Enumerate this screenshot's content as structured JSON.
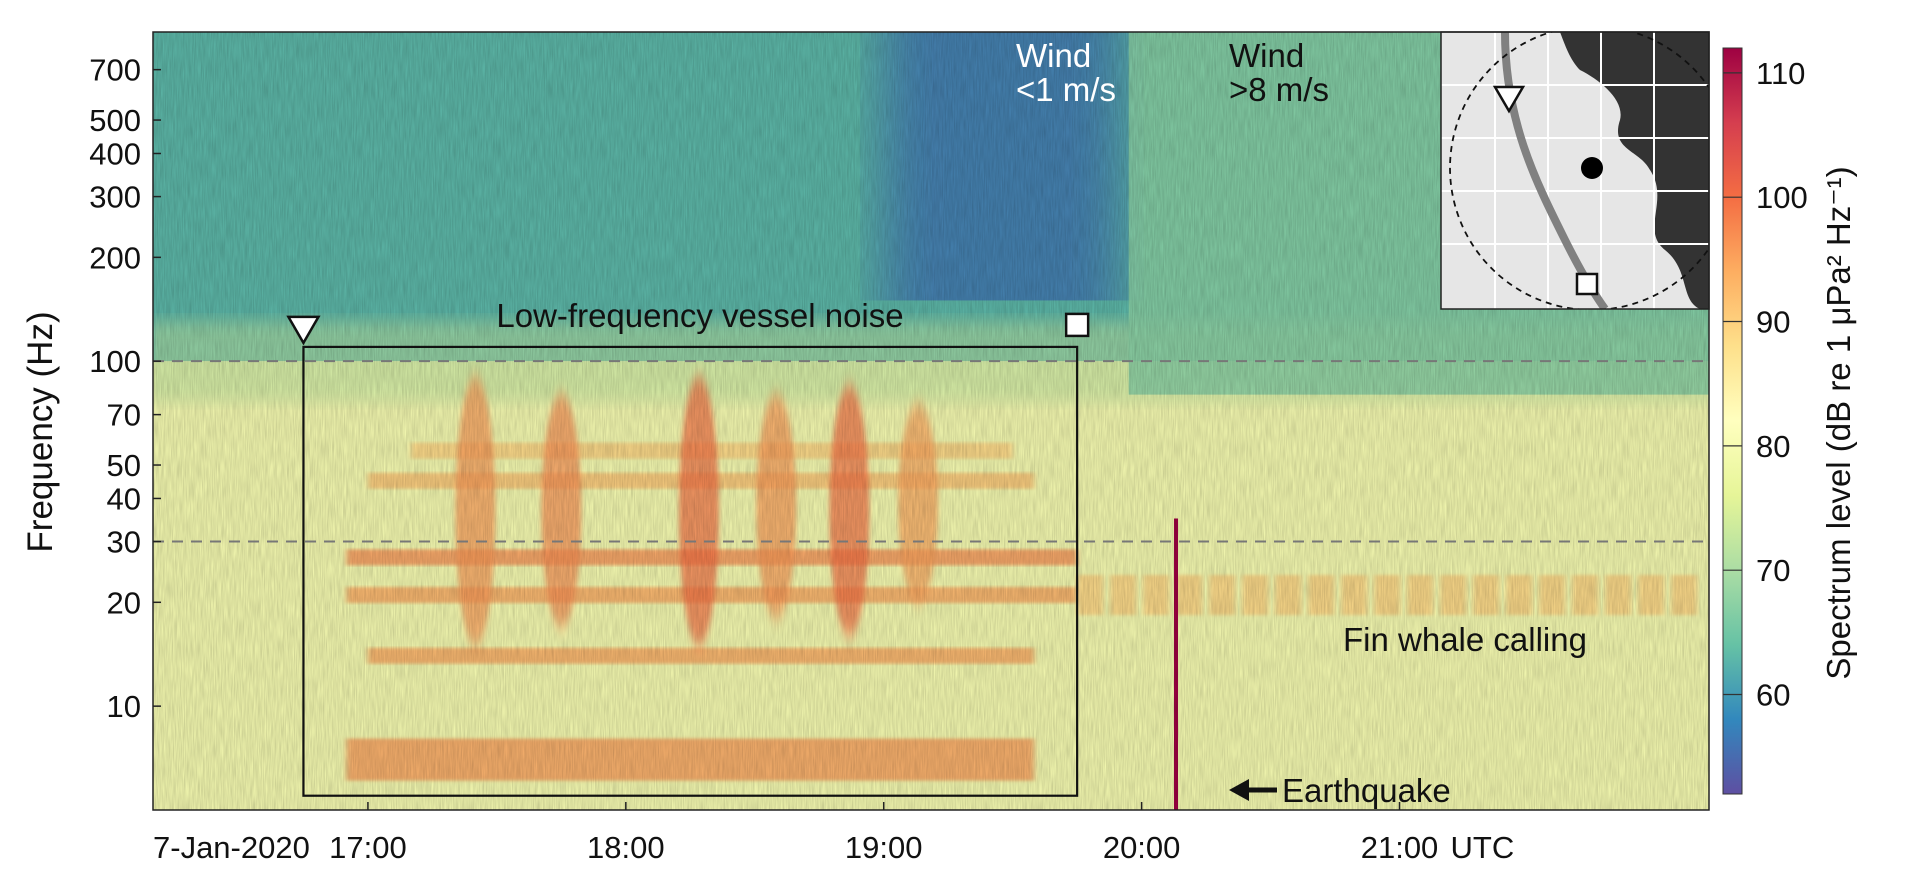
{
  "chart_data": {
    "type": "heatmap",
    "title": "",
    "xlabel": "",
    "ylabel": "Frequency (Hz)",
    "y_scale": "log",
    "ylim": [
      5,
      900
    ],
    "xlim": [
      "16:10",
      "22:12"
    ],
    "x_start_label": "7-Jan-2020",
    "x_ticks": [
      "17:00",
      "18:00",
      "19:00",
      "20:00",
      "21:00"
    ],
    "x_unit": "UTC",
    "y_ticks": [
      10,
      20,
      30,
      40,
      50,
      70,
      100,
      200,
      300,
      400,
      500,
      700
    ],
    "reference_lines_hz": [
      100,
      30
    ],
    "colorbar": {
      "label": "Spectrum level (dB re 1 μPa² Hz⁻¹)",
      "ticks": [
        60,
        70,
        80,
        90,
        100,
        110
      ],
      "range": [
        52,
        112
      ],
      "colors": [
        "#5e4fa2",
        "#3288bd",
        "#66c2a5",
        "#abdda4",
        "#e6f598",
        "#ffffbf",
        "#fee08b",
        "#fdae61",
        "#f46d43",
        "#d53e4f",
        "#9e0142"
      ]
    },
    "background_levels_db": [
      {
        "band_hz": [
          100,
          900
        ],
        "level": 63
      },
      {
        "band_hz": [
          5,
          100
        ],
        "level": 80
      }
    ],
    "vessel_box": {
      "time": [
        "16:45",
        "19:45"
      ],
      "freq_hz": [
        5.5,
        110
      ]
    },
    "vessel_broadband_bursts": [
      {
        "time": "17:25",
        "freq_hz": [
          15,
          90
        ],
        "level": 96
      },
      {
        "time": "17:45",
        "freq_hz": [
          17,
          80
        ],
        "level": 97
      },
      {
        "time": "18:17",
        "freq_hz": [
          15,
          90
        ],
        "level": 100
      },
      {
        "time": "18:35",
        "freq_hz": [
          18,
          80
        ],
        "level": 96
      },
      {
        "time": "18:52",
        "freq_hz": [
          16,
          85
        ],
        "level": 100
      },
      {
        "time": "19:08",
        "freq_hz": [
          20,
          75
        ],
        "level": 95
      }
    ],
    "vessel_tonal_bands": [
      {
        "freq_hz": 27,
        "time": [
          "16:55",
          "19:45"
        ],
        "level": 97
      },
      {
        "freq_hz": 21,
        "time": [
          "16:55",
          "19:45"
        ],
        "level": 95
      },
      {
        "freq_hz": 14,
        "time": [
          "17:00",
          "19:35"
        ],
        "level": 95
      },
      {
        "freq_hz": 45,
        "time": [
          "17:00",
          "19:35"
        ],
        "level": 92
      },
      {
        "freq_hz": 55,
        "time": [
          "17:10",
          "19:30"
        ],
        "level": 90
      },
      {
        "freq_hz": 7,
        "time": [
          "16:55",
          "19:35"
        ],
        "level": 96
      }
    ],
    "fin_whale_band": {
      "freq_hz": 21,
      "time": [
        "19:45",
        "22:05"
      ],
      "level": 90
    },
    "earthquake": {
      "time": "20:08",
      "freq_hz": [
        5,
        35
      ],
      "level": 112
    },
    "wind_low_period": {
      "time": [
        "19:00",
        "19:55"
      ],
      "level": 56
    },
    "wind_high_period": {
      "time": [
        "19:57",
        "22:12"
      ],
      "level": 67
    },
    "markers": [
      {
        "symbol": "triangle",
        "time": "16:45"
      },
      {
        "symbol": "square",
        "time": "19:45"
      }
    ],
    "annotations": {
      "vessel": "Low-frequency vessel noise",
      "wind_low_line1": "Wind",
      "wind_low_line2": "<1 m/s",
      "wind_high_line1": "Wind",
      "wind_high_line2": ">8 m/s",
      "fin_whale": "Fin whale calling",
      "earthquake": "Earthquake"
    },
    "inset_map": {
      "type": "map",
      "elements": [
        "land",
        "ocean",
        "grid",
        "ship-track",
        "detection-radius-circle",
        "station-dot",
        "start-triangle",
        "end-square"
      ]
    }
  }
}
